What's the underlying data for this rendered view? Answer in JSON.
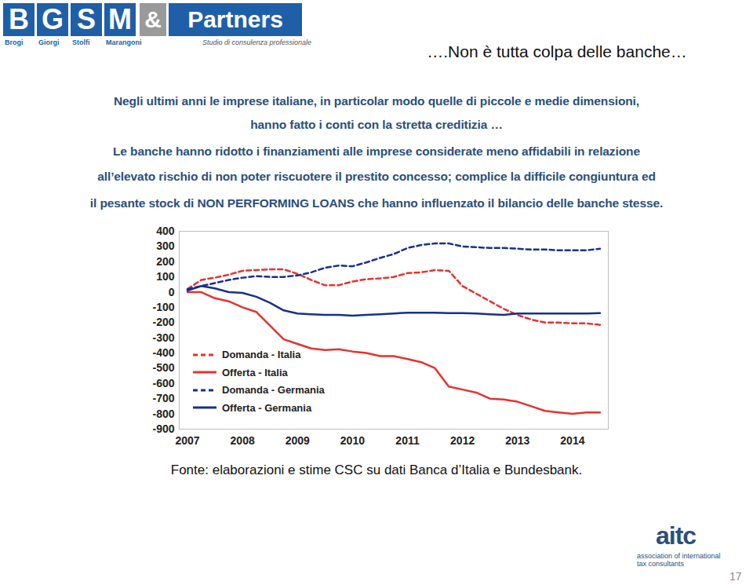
{
  "slide": {
    "logo": {
      "letters": [
        "B",
        "G",
        "S",
        "M"
      ],
      "ampersand": "&",
      "partners": "Partners",
      "names": [
        "Brogi",
        "Giorgi",
        "Stolfi",
        "Marangoni"
      ],
      "tagline": "Studio di consulenza professionale"
    },
    "title": "….Non è tutta colpa delle banche…",
    "paragraph": [
      "Negli ultimi anni le imprese italiane, in particolar modo quelle di piccole e medie dimensioni,",
      "hanno fatto i conti con la stretta creditizia …",
      "Le banche hanno ridotto i finanziamenti alle imprese considerate meno affidabili in relazione",
      "all’elevato rischio di non poter riscuotere il prestito concesso; complice la difficile congiuntura ed",
      "il pesante stock di NON PERFORMING LOANS che hanno influenzato il bilancio delle banche stesse."
    ],
    "source": "Fonte: elaborazioni e stime CSC su dati Banca d’Italia e Bundesbank.",
    "footer_logo": {
      "name": "aitc",
      "tagline": "association of international tax consultants"
    },
    "page_number": "17"
  },
  "chart_data": {
    "type": "line",
    "x": [
      2007,
      2007.25,
      2007.5,
      2007.75,
      2008,
      2008.25,
      2008.5,
      2008.75,
      2009,
      2009.25,
      2009.5,
      2009.75,
      2010,
      2010.25,
      2010.5,
      2010.75,
      2011,
      2011.25,
      2011.5,
      2011.75,
      2012,
      2012.25,
      2012.5,
      2012.75,
      2013,
      2013.25,
      2013.5,
      2013.75,
      2014,
      2014.25,
      2014.5
    ],
    "series": [
      {
        "name": "Domanda - Italia",
        "color": "#e8312f",
        "line_style": "dashed",
        "values": [
          20,
          80,
          95,
          115,
          140,
          145,
          150,
          150,
          120,
          80,
          45,
          45,
          70,
          85,
          90,
          100,
          125,
          130,
          145,
          140,
          40,
          -10,
          -60,
          -110,
          -150,
          -180,
          -200,
          -200,
          -205,
          -205,
          -215
        ]
      },
      {
        "name": "Offerta - Italia",
        "color": "#e8312f",
        "line_style": "solid",
        "values": [
          0,
          0,
          -40,
          -60,
          -100,
          -130,
          -220,
          -310,
          -340,
          -370,
          -380,
          -375,
          -390,
          -400,
          -420,
          -420,
          -440,
          -460,
          -500,
          -620,
          -640,
          -660,
          -700,
          -705,
          -720,
          -750,
          -780,
          -790,
          -800,
          -790,
          -790
        ]
      },
      {
        "name": "Domanda - Germania",
        "color": "#1a2f8a",
        "line_style": "dashed",
        "values": [
          20,
          40,
          60,
          80,
          95,
          105,
          100,
          100,
          110,
          130,
          160,
          175,
          170,
          195,
          225,
          250,
          290,
          310,
          320,
          320,
          300,
          295,
          290,
          290,
          285,
          280,
          280,
          275,
          275,
          275,
          285
        ]
      },
      {
        "name": "Offerta - Germania",
        "color": "#1a2f8a",
        "line_style": "solid",
        "values": [
          10,
          40,
          25,
          0,
          -5,
          -30,
          -70,
          -120,
          -140,
          -145,
          -150,
          -150,
          -155,
          -150,
          -145,
          -140,
          -135,
          -135,
          -135,
          -138,
          -138,
          -140,
          -145,
          -150,
          -140,
          -140,
          -140,
          -140,
          -140,
          -140,
          -138
        ]
      }
    ],
    "xlim": [
      2006.85,
      2014.65
    ],
    "xticks": [
      2007,
      2008,
      2009,
      2010,
      2011,
      2012,
      2013,
      2014
    ],
    "ylim": [
      -900,
      400
    ],
    "yticks": [
      -900,
      -800,
      -700,
      -600,
      -500,
      -400,
      -300,
      -200,
      -100,
      0,
      100,
      200,
      300,
      400
    ],
    "grid": false,
    "legend": "lower left"
  }
}
